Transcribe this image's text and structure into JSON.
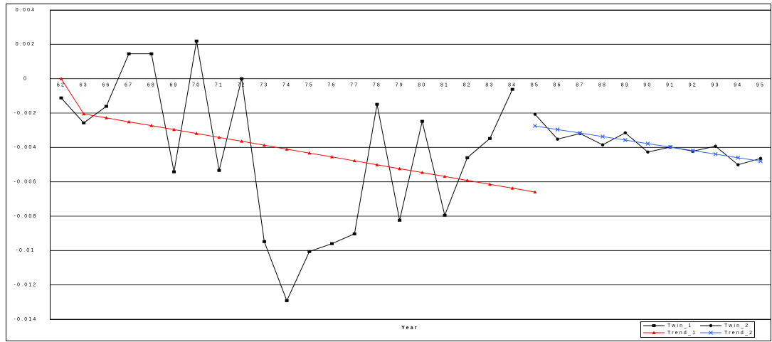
{
  "chart_data": {
    "type": "line",
    "x_label": "Year",
    "categories": [
      "62",
      "63",
      "66",
      "67",
      "68",
      "69",
      "70",
      "71",
      "72",
      "73",
      "74",
      "75",
      "76",
      "77",
      "78",
      "79",
      "80",
      "81",
      "82",
      "83",
      "84",
      "85",
      "86",
      "87",
      "88",
      "89",
      "90",
      "91",
      "92",
      "93",
      "94",
      "95"
    ],
    "series": [
      {
        "name": "Twin_1",
        "color": "#000000",
        "marker": "square",
        "values": [
          -0.00112,
          -0.00257,
          -0.00161,
          0.00145,
          0.00145,
          -0.00542,
          0.00219,
          -0.00534,
          0,
          -0.00948,
          -0.01292,
          -0.01006,
          -0.0096,
          -0.00903,
          -0.00149,
          -0.00824,
          -0.00248,
          -0.00795,
          -0.0046,
          -0.00348,
          -0.00062,
          null,
          null,
          null,
          null,
          null,
          null,
          null,
          null,
          null,
          null,
          null
        ]
      },
      {
        "name": "Twin_2",
        "color": "#000000",
        "marker": "circle",
        "values": [
          null,
          null,
          null,
          null,
          null,
          null,
          null,
          null,
          null,
          null,
          null,
          null,
          null,
          null,
          null,
          null,
          null,
          null,
          null,
          null,
          null,
          -0.00207,
          -0.00352,
          -0.00319,
          -0.00385,
          -0.00315,
          -0.00427,
          -0.00398,
          -0.00422,
          -0.00393,
          -0.00501,
          -0.00464
        ]
      },
      {
        "name": "Trend_1",
        "color": "#ff0000",
        "marker": "triangle",
        "values": [
          0,
          -0.00205,
          -0.00228,
          -0.00251,
          -0.00273,
          -0.00296,
          -0.00319,
          -0.00342,
          -0.00364,
          -0.00387,
          -0.0041,
          -0.00433,
          -0.00455,
          -0.00478,
          -0.00501,
          -0.00524,
          -0.00546,
          -0.00569,
          -0.00592,
          -0.00615,
          -0.00637,
          -0.0066,
          null,
          null,
          null,
          null,
          null,
          null,
          null,
          null,
          null,
          null
        ]
      },
      {
        "name": "Trend_2",
        "color": "#3366ff",
        "marker": "cross",
        "values": [
          null,
          null,
          null,
          null,
          null,
          null,
          null,
          null,
          null,
          null,
          null,
          null,
          null,
          null,
          null,
          null,
          null,
          null,
          null,
          null,
          null,
          -0.00275,
          -0.00296,
          -0.00316,
          -0.00337,
          -0.00357,
          -0.00378,
          -0.00398,
          -0.00419,
          -0.00439,
          -0.0046,
          -0.0048
        ]
      }
    ],
    "ylim": [
      -0.014,
      0.004
    ],
    "yticks": [
      -0.014,
      -0.012,
      -0.01,
      -0.008,
      -0.006,
      -0.004,
      -0.002,
      0,
      0.002,
      0.004
    ],
    "grid": true,
    "legend": "bottom right"
  }
}
